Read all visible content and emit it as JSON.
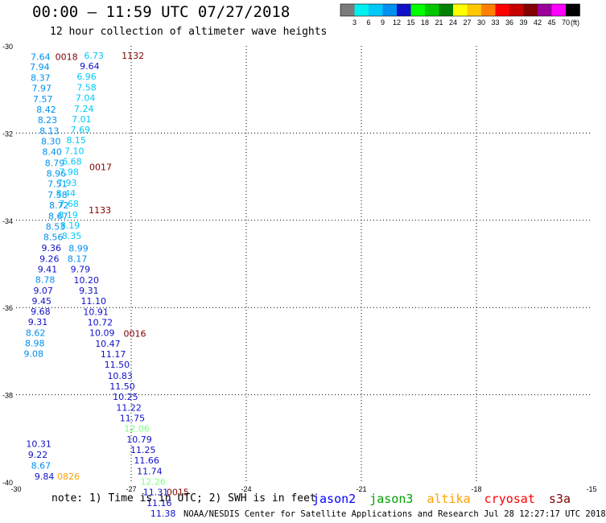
{
  "header": {
    "title": "00:00 – 11:59 UTC 07/27/2018",
    "subtitle": "12 hour collection of altimeter wave heights"
  },
  "colorbar": {
    "unit": "(ft)",
    "ticks": [
      "3",
      "6",
      "9",
      "12",
      "15",
      "18",
      "21",
      "24",
      "27",
      "30",
      "33",
      "36",
      "39",
      "42",
      "45",
      "70"
    ],
    "colors": [
      "#7b7b7b",
      "#00f0f0",
      "#00c8f8",
      "#0090f0",
      "#1010c8",
      "#00ff00",
      "#00c800",
      "#008200",
      "#ffff00",
      "#ffc800",
      "#ff8000",
      "#ff0000",
      "#c80000",
      "#820000",
      "#9b009b",
      "#ff00ff",
      "#000000"
    ]
  },
  "legend": [
    {
      "label": "jason2",
      "color": "#0000ff"
    },
    {
      "label": "jason3",
      "color": "#00a000"
    },
    {
      "label": "altika",
      "color": "#ffa000"
    },
    {
      "label": "cryosat",
      "color": "#ff0000"
    },
    {
      "label": "s3a",
      "color": "#800000"
    }
  ],
  "footer": {
    "note": "note: 1) Time is in UTC; 2) SWH is in feet",
    "credit": "NOAA/NESDIS Center for Satellite Applications and Research    Jul 28 12:27:17 UTC 2018"
  },
  "chart_data": {
    "type": "scatter",
    "title": "00:00 – 11:59 UTC 07/27/2018",
    "xlim": [
      -30,
      -15
    ],
    "ylim": [
      -40,
      -30
    ],
    "x_ticks": [
      -30,
      -27,
      -24,
      -21,
      -18,
      -15
    ],
    "y_ticks": [
      -30,
      -32,
      -34,
      -36,
      -38,
      -40
    ],
    "x_tick_labels": [
      "-30",
      "-27",
      "-24",
      "-21",
      "-18",
      "-15"
    ],
    "y_tick_labels": [
      "-30",
      "-32",
      "-34",
      "-36",
      "-38",
      "-40"
    ],
    "grid": true,
    "series": [
      {
        "name": "jason2",
        "color": "#0000ff",
        "points": []
      },
      {
        "name": "jason3",
        "color": "#00a000",
        "points": []
      },
      {
        "name": "altika",
        "color": "#ffa000",
        "points": []
      },
      {
        "name": "cryosat",
        "color": "#ff0000",
        "points": []
      },
      {
        "name": "s3a",
        "color": "#800000",
        "points": []
      }
    ],
    "labels": [
      {
        "x": -29.62,
        "y": -30.25,
        "text": "7.64",
        "color": "#0090f0"
      },
      {
        "x": -29.64,
        "y": -30.48,
        "text": "7.94",
        "color": "#0090f0"
      },
      {
        "x": -29.62,
        "y": -30.73,
        "text": "8.37",
        "color": "#0090f0"
      },
      {
        "x": -29.59,
        "y": -30.97,
        "text": "7.97",
        "color": "#0090f0"
      },
      {
        "x": -29.56,
        "y": -31.22,
        "text": "7.57",
        "color": "#0090f0"
      },
      {
        "x": -29.47,
        "y": -31.46,
        "text": "8.42",
        "color": "#0090f0"
      },
      {
        "x": -29.44,
        "y": -31.7,
        "text": "8.23",
        "color": "#0090f0"
      },
      {
        "x": -29.39,
        "y": -31.95,
        "text": "8.13",
        "color": "#0090f0"
      },
      {
        "x": -29.35,
        "y": -32.19,
        "text": "8.30",
        "color": "#0090f0"
      },
      {
        "x": -29.32,
        "y": -32.43,
        "text": "8.40",
        "color": "#0090f0"
      },
      {
        "x": -29.25,
        "y": -32.68,
        "text": "8.79",
        "color": "#0090f0"
      },
      {
        "x": -29.21,
        "y": -32.92,
        "text": "8.96",
        "color": "#0090f0"
      },
      {
        "x": -29.18,
        "y": -33.16,
        "text": "7.51",
        "color": "#0090f0"
      },
      {
        "x": -29.18,
        "y": -33.41,
        "text": "7.58",
        "color": "#0090f0"
      },
      {
        "x": -29.14,
        "y": -33.65,
        "text": "8.72",
        "color": "#0090f0"
      },
      {
        "x": -29.16,
        "y": -33.9,
        "text": "8.67",
        "color": "#0090f0"
      },
      {
        "x": -29.23,
        "y": -34.14,
        "text": "8.53",
        "color": "#0090f0"
      },
      {
        "x": -29.29,
        "y": -34.38,
        "text": "8.56",
        "color": "#0090f0"
      },
      {
        "x": -29.34,
        "y": -34.63,
        "text": "9.36",
        "color": "#1010c8"
      },
      {
        "x": -29.39,
        "y": -34.88,
        "text": "9.26",
        "color": "#1010c8"
      },
      {
        "x": -29.44,
        "y": -35.12,
        "text": "9.41",
        "color": "#1010c8"
      },
      {
        "x": -29.5,
        "y": -35.36,
        "text": "8.78",
        "color": "#0090f0"
      },
      {
        "x": -29.55,
        "y": -35.61,
        "text": "9.07",
        "color": "#1010c8"
      },
      {
        "x": -29.59,
        "y": -35.85,
        "text": "9.45",
        "color": "#1010c8"
      },
      {
        "x": -29.62,
        "y": -36.09,
        "text": "9.68",
        "color": "#1010c8"
      },
      {
        "x": -29.69,
        "y": -36.33,
        "text": "9.31",
        "color": "#1010c8"
      },
      {
        "x": -29.75,
        "y": -36.58,
        "text": "8.62",
        "color": "#0090f0"
      },
      {
        "x": -29.77,
        "y": -36.82,
        "text": "8.98",
        "color": "#0090f0"
      },
      {
        "x": -29.8,
        "y": -37.06,
        "text": "9.08",
        "color": "#0090f0"
      },
      {
        "x": -29.74,
        "y": -39.12,
        "text": "10.31",
        "color": "#1010c8"
      },
      {
        "x": -29.69,
        "y": -39.37,
        "text": "9.22",
        "color": "#1010c8"
      },
      {
        "x": -29.61,
        "y": -39.62,
        "text": "8.67",
        "color": "#0090f0"
      },
      {
        "x": -29.52,
        "y": -39.87,
        "text": "9.84",
        "color": "#1010c8"
      },
      {
        "x": -28.93,
        "y": -39.87,
        "text": "0826",
        "color": "#ffa000"
      },
      {
        "x": -28.98,
        "y": -30.25,
        "text": "0018",
        "color": "#820000"
      },
      {
        "x": -28.23,
        "y": -30.22,
        "text": "6.73",
        "color": "#00c8f8"
      },
      {
        "x": -28.34,
        "y": -30.46,
        "text": "9.64",
        "color": "#1010c8"
      },
      {
        "x": -28.42,
        "y": -30.7,
        "text": "6.96",
        "color": "#00c8f8"
      },
      {
        "x": -28.42,
        "y": -30.95,
        "text": "7.58",
        "color": "#00c8f8"
      },
      {
        "x": -28.45,
        "y": -31.19,
        "text": "7.04",
        "color": "#00c8f8"
      },
      {
        "x": -28.49,
        "y": -31.44,
        "text": "7.24",
        "color": "#00c8f8"
      },
      {
        "x": -28.55,
        "y": -31.68,
        "text": "7.01",
        "color": "#00c8f8"
      },
      {
        "x": -28.58,
        "y": -31.92,
        "text": "7.69",
        "color": "#00c8f8"
      },
      {
        "x": -28.69,
        "y": -32.16,
        "text": "8.15",
        "color": "#00c8f8"
      },
      {
        "x": -28.74,
        "y": -32.41,
        "text": "7.10",
        "color": "#00c8f8"
      },
      {
        "x": -28.8,
        "y": -32.65,
        "text": "6.68",
        "color": "#00c8f8"
      },
      {
        "x": -28.88,
        "y": -32.89,
        "text": "7.98",
        "color": "#00c8f8"
      },
      {
        "x": -28.93,
        "y": -33.14,
        "text": "7.93",
        "color": "#00c8f8"
      },
      {
        "x": -28.96,
        "y": -33.38,
        "text": "8.44",
        "color": "#00c8f8"
      },
      {
        "x": -28.88,
        "y": -33.62,
        "text": "7.68",
        "color": "#00c8f8"
      },
      {
        "x": -28.9,
        "y": -33.87,
        "text": "8.19",
        "color": "#00c8f8"
      },
      {
        "x": -28.85,
        "y": -34.11,
        "text": "8.19",
        "color": "#00c8f8"
      },
      {
        "x": -28.81,
        "y": -34.35,
        "text": "8.35",
        "color": "#00c8f8"
      },
      {
        "x": -28.63,
        "y": -34.64,
        "text": "8.99",
        "color": "#0090f0"
      },
      {
        "x": -28.66,
        "y": -34.88,
        "text": "8.17",
        "color": "#0090f0"
      },
      {
        "x": -28.58,
        "y": -35.12,
        "text": "9.79",
        "color": "#1010c8"
      },
      {
        "x": -28.5,
        "y": -35.37,
        "text": "10.20",
        "color": "#1010c8"
      },
      {
        "x": -28.36,
        "y": -35.61,
        "text": "9.31",
        "color": "#1010c8"
      },
      {
        "x": -28.31,
        "y": -35.85,
        "text": "11.10",
        "color": "#1010c8"
      },
      {
        "x": -28.25,
        "y": -36.1,
        "text": "10.91",
        "color": "#1010c8"
      },
      {
        "x": -28.14,
        "y": -36.34,
        "text": "10.72",
        "color": "#1010c8"
      },
      {
        "x": -28.09,
        "y": -36.58,
        "text": "10.09",
        "color": "#1010c8"
      },
      {
        "x": -27.94,
        "y": -36.83,
        "text": "10.47",
        "color": "#1010c8"
      },
      {
        "x": -27.8,
        "y": -37.07,
        "text": "11.17",
        "color": "#1010c8"
      },
      {
        "x": -27.7,
        "y": -37.31,
        "text": "11.50",
        "color": "#1010c8"
      },
      {
        "x": -27.62,
        "y": -37.56,
        "text": "10.83",
        "color": "#1010c8"
      },
      {
        "x": -27.56,
        "y": -37.8,
        "text": "11.50",
        "color": "#1010c8"
      },
      {
        "x": -27.48,
        "y": -38.04,
        "text": "10.25",
        "color": "#1010c8"
      },
      {
        "x": -27.39,
        "y": -38.29,
        "text": "11.22",
        "color": "#1010c8"
      },
      {
        "x": -27.3,
        "y": -38.53,
        "text": "11.75",
        "color": "#1010c8"
      },
      {
        "x": -27.18,
        "y": -38.77,
        "text": "12.06",
        "color": "#80ff80"
      },
      {
        "x": -27.12,
        "y": -39.02,
        "text": "10.79",
        "color": "#1010c8"
      },
      {
        "x": -27.02,
        "y": -39.26,
        "text": "11.25",
        "color": "#1010c8"
      },
      {
        "x": -26.93,
        "y": -39.5,
        "text": "11.66",
        "color": "#1010c8"
      },
      {
        "x": -26.85,
        "y": -39.75,
        "text": "11.74",
        "color": "#1010c8"
      },
      {
        "x": -26.76,
        "y": -39.99,
        "text": "12.26",
        "color": "#80ff80"
      },
      {
        "x": -26.69,
        "y": -40.23,
        "text": "11.31",
        "color": "#1010c8"
      },
      {
        "x": -26.6,
        "y": -40.48,
        "text": "11.16",
        "color": "#1010c8"
      },
      {
        "x": -26.5,
        "y": -40.72,
        "text": "11.38",
        "color": "#1010c8"
      },
      {
        "x": -27.25,
        "y": -30.22,
        "text": "1132",
        "color": "#820000"
      },
      {
        "x": -28.09,
        "y": -32.78,
        "text": "0017",
        "color": "#820000"
      },
      {
        "x": -28.11,
        "y": -33.76,
        "text": "1133",
        "color": "#820000"
      },
      {
        "x": -27.2,
        "y": -36.6,
        "text": "0016",
        "color": "#820000"
      },
      {
        "x": -26.08,
        "y": -40.23,
        "text": "0015",
        "color": "#820000"
      }
    ]
  }
}
